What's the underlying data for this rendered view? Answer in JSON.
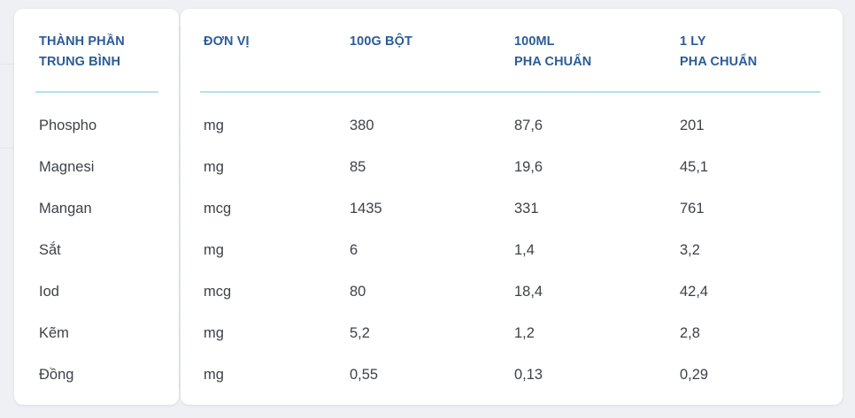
{
  "headers": {
    "component": "THÀNH PHẦN\nTRUNG BÌNH",
    "unit": "ĐƠN VỊ",
    "per_100g": "100G BỘT",
    "per_100ml": "100ML\nPHA CHUẨN",
    "per_cup": "1 LY\nPHA CHUẨN"
  },
  "rows": [
    {
      "name": "Phospho",
      "unit": "mg",
      "per_100g": "380",
      "per_100ml": "87,6",
      "per_cup": "201"
    },
    {
      "name": "Magnesi",
      "unit": "mg",
      "per_100g": "85",
      "per_100ml": "19,6",
      "per_cup": "45,1"
    },
    {
      "name": "Mangan",
      "unit": "mcg",
      "per_100g": "1435",
      "per_100ml": "331",
      "per_cup": "761"
    },
    {
      "name": "Sắt",
      "unit": "mg",
      "per_100g": "6",
      "per_100ml": "1,4",
      "per_cup": "3,2"
    },
    {
      "name": "Iod",
      "unit": "mcg",
      "per_100g": "80",
      "per_100ml": "18,4",
      "per_cup": "42,4"
    },
    {
      "name": "Kẽm",
      "unit": "mg",
      "per_100g": "5,2",
      "per_100ml": "1,2",
      "per_cup": "2,8"
    },
    {
      "name": "Đồng",
      "unit": "mg",
      "per_100g": "0,55",
      "per_100ml": "0,13",
      "per_cup": "0,29"
    }
  ],
  "colors": {
    "header_text": "#2b5c98",
    "header_rule": "#b5e1ef",
    "body_text": "#3e4247",
    "background": "#eef0f4",
    "card": "#ffffff"
  }
}
